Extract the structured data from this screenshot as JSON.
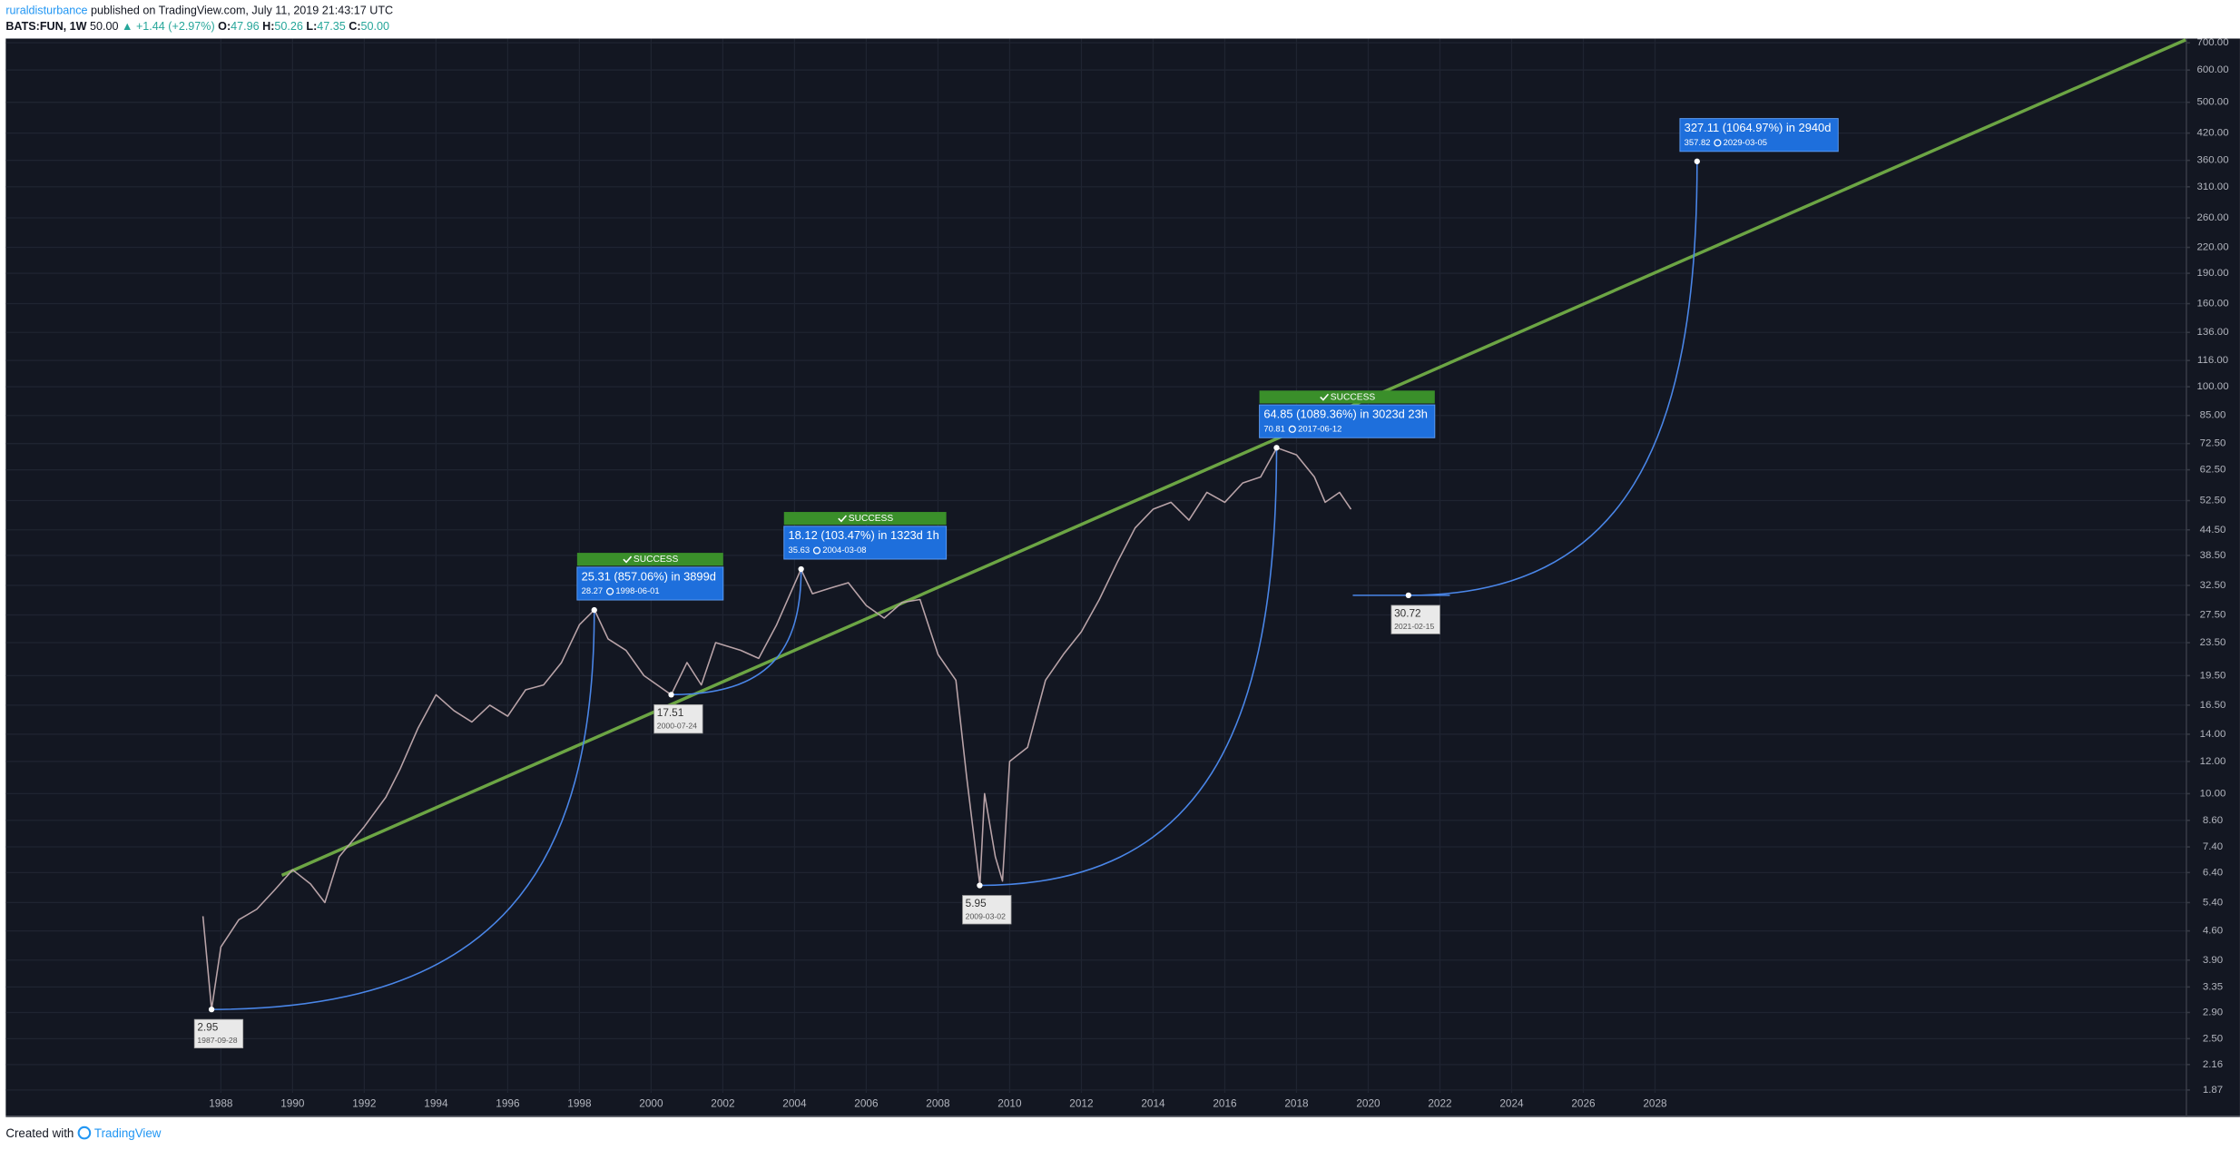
{
  "header": {
    "author": "ruraldisturbance",
    "published": "published on TradingView.com, July 11, 2019 21:43:17 UTC",
    "symbol": "BATS:FUN, 1W",
    "last": "50.00",
    "change": "▲ +1.44 (+2.97%)",
    "ohlc": [
      {
        "label": "O:",
        "value": "47.96"
      },
      {
        "label": "H:",
        "value": "50.26"
      },
      {
        "label": "L:",
        "value": "47.35"
      },
      {
        "label": "C:",
        "value": "50.00"
      }
    ]
  },
  "chart_data": {
    "type": "line",
    "log_scale": true,
    "grid": true,
    "xlim": [
      1982.0,
      2042.8
    ],
    "ylim": [
      1.84,
      717
    ],
    "xticks": [
      1988,
      1990,
      1992,
      1994,
      1996,
      1998,
      2000,
      2002,
      2004,
      2006,
      2008,
      2010,
      2012,
      2014,
      2016,
      2018,
      2020,
      2022,
      2024,
      2026,
      2028
    ],
    "yticks": [
      {
        "value": 700,
        "label": "700.00"
      },
      {
        "value": 600,
        "label": "600.00"
      },
      {
        "value": 500,
        "label": "500.00"
      },
      {
        "value": 420,
        "label": "420.00"
      },
      {
        "value": 360,
        "label": "360.00"
      },
      {
        "value": 310,
        "label": "310.00"
      },
      {
        "value": 260,
        "label": "260.00"
      },
      {
        "value": 220,
        "label": "220.00"
      },
      {
        "value": 190,
        "label": "190.00"
      },
      {
        "value": 160,
        "label": "160.00"
      },
      {
        "value": 136,
        "label": "136.00"
      },
      {
        "value": 116,
        "label": "116.00"
      },
      {
        "value": 100,
        "label": "100.00"
      },
      {
        "value": 85,
        "label": "85.00"
      },
      {
        "value": 72.5,
        "label": "72.50"
      },
      {
        "value": 62.5,
        "label": "62.50"
      },
      {
        "value": 52.5,
        "label": "52.50"
      },
      {
        "value": 44.5,
        "label": "44.50"
      },
      {
        "value": 38.5,
        "label": "38.50"
      },
      {
        "value": 32.5,
        "label": "32.50"
      },
      {
        "value": 27.5,
        "label": "27.50"
      },
      {
        "value": 23.5,
        "label": "23.50"
      },
      {
        "value": 19.5,
        "label": "19.50"
      },
      {
        "value": 16.5,
        "label": "16.50"
      },
      {
        "value": 14,
        "label": "14.00"
      },
      {
        "value": 12,
        "label": "12.00"
      },
      {
        "value": 10,
        "label": "10.00"
      },
      {
        "value": 8.6,
        "label": "8.60"
      },
      {
        "value": 7.4,
        "label": "7.40"
      },
      {
        "value": 6.4,
        "label": "6.40"
      },
      {
        "value": 5.4,
        "label": "5.40"
      },
      {
        "value": 4.6,
        "label": "4.60"
      },
      {
        "value": 3.9,
        "label": "3.90"
      },
      {
        "value": 3.35,
        "label": "3.35"
      },
      {
        "value": 2.9,
        "label": "2.90"
      },
      {
        "value": 2.5,
        "label": "2.50"
      },
      {
        "value": 2.16,
        "label": "2.16"
      },
      {
        "value": 1.87,
        "label": "1.87"
      }
    ],
    "series": [
      {
        "color": "#b9a3a8",
        "x": [
          1987.5,
          1987.74,
          1988.0,
          1988.5,
          1989.0,
          1989.5,
          1990.0,
          1990.5,
          1990.9,
          1991.3,
          1992.0,
          1992.6,
          1993.0,
          1993.5,
          1994.0,
          1994.5,
          1995.0,
          1995.5,
          1996.0,
          1996.5,
          1997.0,
          1997.5,
          1998.0,
          1998.42,
          1998.8,
          1999.3,
          1999.8,
          2000.56,
          2001.0,
          2001.4,
          2001.8,
          2002.5,
          2003.0,
          2003.5,
          2004.18,
          2004.5,
          2005.0,
          2005.5,
          2006.0,
          2006.5,
          2007.0,
          2007.5,
          2008.0,
          2008.5,
          2008.8,
          2009.17,
          2009.3,
          2009.6,
          2009.8,
          2010.0,
          2010.5,
          2011.0,
          2011.5,
          2012.0,
          2012.5,
          2013.0,
          2013.5,
          2014.0,
          2014.5,
          2015.0,
          2015.5,
          2016.0,
          2016.5,
          2017.0,
          2017.45,
          2018.0,
          2018.5,
          2018.8,
          2019.2,
          2019.52
        ],
        "values": [
          5.0,
          2.95,
          4.2,
          4.9,
          5.2,
          5.8,
          6.5,
          6.0,
          5.4,
          7.0,
          8.3,
          9.8,
          11.5,
          14.5,
          17.5,
          16.0,
          15.0,
          16.5,
          15.5,
          18.0,
          18.5,
          21.0,
          26.0,
          28.3,
          24.0,
          22.5,
          19.5,
          17.5,
          21.0,
          18.5,
          23.5,
          22.5,
          21.5,
          26.0,
          35.6,
          31.0,
          32.0,
          33.0,
          29.0,
          27.0,
          29.5,
          30.0,
          22.0,
          19.0,
          11.0,
          5.95,
          10.0,
          7.0,
          6.1,
          12.0,
          13.0,
          19.0,
          22.0,
          25.0,
          30.0,
          37.0,
          45.0,
          50.0,
          52.0,
          47.0,
          55.0,
          52.0,
          58.0,
          60.0,
          70.8,
          68.0,
          60.0,
          52.0,
          55.0,
          50.0
        ]
      }
    ],
    "trend_line": {
      "color": "#6ca544",
      "x": [
        1989.7,
        2042.8
      ],
      "values": [
        6.3,
        712
      ]
    },
    "measurements": [
      {
        "start_value": 2.95,
        "start_date": "1987-09-28",
        "end_value": 28.27,
        "end_date": "1998-06-01",
        "change": "25.31 (857.06%) in 3899d",
        "status": "SUCCESS"
      },
      {
        "start_value": 17.51,
        "start_date": "2000-07-24",
        "end_value": 35.63,
        "end_date": "2004-03-08",
        "change": "18.12 (103.47%) in 1323d 1h",
        "status": "SUCCESS"
      },
      {
        "start_value": 5.95,
        "start_date": "2009-03-02",
        "end_value": 70.81,
        "end_date": "2017-06-12",
        "change": "64.85 (1089.36%) in 3023d 23h",
        "status": "SUCCESS"
      },
      {
        "start_value": 30.72,
        "start_date": "2021-02-15",
        "end_value": 357.82,
        "end_date": "2029-03-05",
        "change": "327.11 (1064.97%) in 2940d"
      }
    ]
  },
  "footer": {
    "prefix": "Created with",
    "brand": "TradingView"
  }
}
